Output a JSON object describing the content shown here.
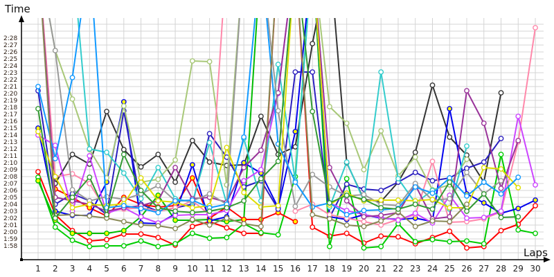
{
  "chart_data": {
    "type": "line",
    "title": "",
    "xlabel": "Laps",
    "ylabel": "Time",
    "x": [
      1,
      2,
      3,
      4,
      5,
      6,
      7,
      8,
      9,
      10,
      11,
      12,
      13,
      14,
      15,
      16,
      17,
      18,
      19,
      20,
      21,
      22,
      23,
      24,
      25,
      26,
      27,
      28,
      29,
      30
    ],
    "y_ticks": [
      "1:58",
      "1:59",
      "2:00",
      "2:01",
      "2:02",
      "2:03",
      "2:04",
      "2:05",
      "2:06",
      "2:07",
      "2:08",
      "2:09",
      "2:10",
      "2:11",
      "2:12",
      "2:13",
      "2:14",
      "2:15",
      "2:16",
      "2:17",
      "2:18",
      "2:19",
      "2:20",
      "2:21",
      "2:22",
      "2:23",
      "2:24",
      "2:25",
      "2:26",
      "2:27",
      "2:28"
    ],
    "ylim": [
      "1:56",
      "2:30"
    ],
    "grid": true,
    "off_scale_marker": ">2:30",
    "series": [
      {
        "color": "#ff0000",
        "marker_fill": "#ffffff",
        "values": [
          "2:08.7",
          "2:02.5",
          "2:00.2",
          "1:58.7",
          "1:58.9",
          "1:59.7",
          "1:59.7",
          "1:59.2",
          "1:58.1",
          "2:00.8",
          "2:01.5",
          "2:00.6",
          "1:59.8",
          "1:59.8",
          ">2:30",
          ">2:30",
          "2:00.7",
          "1:59.4",
          "1:59.8",
          "1:58.4",
          "1:59.4",
          "1:59.3",
          "1:58.3",
          "1:59.2",
          "2:00.1",
          "1:57.7",
          "1:57.9",
          "2:00.2",
          "2:01.1",
          "2:03.8"
        ]
      },
      {
        "color": "#00cc00",
        "marker_fill": "#ffffff",
        "values": [
          "2:07.9",
          "2:00.7",
          "1:58.8",
          "1:57.9",
          "1:58.0",
          "1:58.0",
          "1:58.7",
          "1:57.9",
          "1:58.3",
          "1:59.8",
          "1:59.1",
          "1:59.2",
          "2:01.2",
          "1:59.9",
          "1:59.6",
          "2:08.0",
          ">2:30",
          "1:57.9",
          "2:07.7",
          "1:57.7",
          "1:57.9",
          "2:01.2",
          "1:58.6",
          "1:58.9",
          "1:58.6",
          "1:58.7",
          "1:58.3",
          "2:11.2",
          "2:00.3",
          "1:59.8"
        ]
      },
      {
        "color": "#00bb00",
        "marker_fill": "#ffff00",
        "values": [
          "2:07.4",
          "2:01.7",
          "1:59.8",
          "1:59.8",
          "1:59.8",
          "2:00.2",
          "2:02.2",
          "2:05.3",
          "2:01.7",
          "2:01.7",
          "2:01.8",
          "2:01.5",
          "2:01.8",
          ">2:30",
          null,
          null,
          null,
          null,
          null,
          null,
          null,
          null,
          null,
          null,
          null,
          null,
          null,
          null,
          null,
          null
        ]
      },
      {
        "color": "#ff0000",
        "marker_fill": "#ffff00",
        "values": [
          ">2:30",
          "2:06.2",
          "2:05.0",
          "2:03.5",
          "2:02.3",
          "2:05.0",
          "2:04.0",
          "2:03.6",
          "2:03.8",
          "2:07.8",
          "2:02.0",
          "2:03.6",
          "2:01.8",
          "2:01.8",
          "2:02.8",
          "2:01.5",
          null,
          null,
          null,
          null,
          null,
          null,
          null,
          null,
          null,
          null,
          null,
          null,
          null,
          null
        ]
      },
      {
        "color": "#333333",
        "marker_fill": "#ffffff",
        "values": [
          ">2:30",
          "2:07.0",
          "2:11.2",
          "2:09.8",
          "2:17.4",
          "2:11.9",
          "2:09.4",
          "2:11.2",
          "2:07.2",
          "2:13.2",
          "2:10.1",
          "2:09.6",
          "2:09.7",
          "2:16.7",
          "2:11.2",
          "2:12.3",
          "2:27.2",
          ">2:30",
          "2:10.0",
          "2:04.7",
          "2:04.4",
          "2:07.2",
          "2:11.5",
          "2:21.2",
          "2:13.7",
          "2:11.1",
          "2:07.2",
          "2:20.1",
          null,
          null
        ]
      },
      {
        "color": "#0000ee",
        "marker_fill": "#ffff00",
        "values": [
          "2:15.0",
          "2:03.0",
          "2:02.4",
          "2:02.4",
          "2:07.2",
          "2:18.8",
          "2:01.3",
          "2:01.2",
          "2:02.6",
          "2:09.7",
          "2:01.6",
          "2:02.2",
          "2:10.0",
          "2:08.5",
          "2:03.5",
          "2:14.5",
          ">2:30",
          "2:02.2",
          "2:01.8",
          "2:02.5",
          "2:02.0",
          "2:01.8",
          "2:02.0",
          "2:01.5",
          "2:17.8",
          "2:05.5",
          "2:04.2",
          "2:02.7",
          "2:03.4",
          "2:04.6"
        ]
      },
      {
        "color": "#2b1fbf",
        "marker_fill": "#ffffff",
        "values": [
          "2:20.4",
          "2:04.0",
          "2:05.5",
          "2:04.5",
          "2:02.5",
          "2:17.5",
          "2:04.0",
          "2:03.0",
          "2:03.5",
          "2:04.0",
          "2:14.2",
          "2:10.8",
          "2:06.5",
          "2:07.4",
          "2:03.3",
          "2:23.1",
          "2:23.1",
          "2:02.1",
          "2:06.9",
          "2:06.2",
          "2:06.0",
          "2:07.2",
          "2:08.6",
          "2:07.4",
          "2:07.8",
          "2:09.2",
          "2:10.1",
          "2:13.5",
          null,
          null
        ]
      },
      {
        "color": "#a8c878",
        "marker_fill": "#ffffff",
        "values": [
          ">2:30",
          "2:26.2",
          "2:19.2",
          "2:11.9",
          "2:07.8",
          "2:18.2",
          "2:07.2",
          "2:07.6",
          "2:10.4",
          "2:24.7",
          "2:24.6",
          "2:06.8",
          ">2:30",
          ">2:30",
          ">2:30",
          ">2:30",
          ">2:30",
          "2:18.1",
          "2:15.7",
          "2:09.0",
          "2:14.6",
          "2:08.1",
          "2:10.8",
          "2:06.1",
          "2:06.8",
          "2:10.5",
          null,
          null,
          null,
          null
        ]
      },
      {
        "color": "#33cccc",
        "marker_fill": "#ffffff",
        "values": [
          ">2:30",
          ">2:30",
          ">2:30",
          "2:12.0",
          "2:11.5",
          "2:08.5",
          "2:04.8",
          "2:09.3",
          "2:04.8",
          "2:04.3",
          "2:12.9",
          "2:04.1",
          "2:13.5",
          "2:04.5",
          "2:24.2",
          "2:07.4",
          ">2:30",
          "2:03.6",
          "2:10.1",
          "2:04.5",
          "2:23.1",
          "2:07.7",
          "2:04.2",
          "2:06.0",
          "2:03.3",
          "2:12.4",
          null,
          null,
          null,
          null
        ]
      },
      {
        "color": "#ff88aa",
        "marker_fill": "#ffffff",
        "values": [
          ">2:30",
          "2:08.0",
          "2:08.4",
          "2:07.0",
          "2:03.0",
          "2:03.3",
          "2:03.5",
          "2:03.0",
          "2:03.5",
          "2:04.5",
          "2:02.5",
          ">2:30",
          ">2:30",
          null,
          null,
          "2:03.0",
          "2:04.0",
          "2:02.5",
          "2:02.0",
          "2:01.5",
          "2:01.0",
          "2:01.8",
          "2:02.5",
          "2:10.2",
          "2:01.4",
          "2:01.5",
          "2:01.9",
          "2:02.9",
          "2:13.0",
          "2:29.5"
        ]
      },
      {
        "color": "#cc44ff",
        "marker_fill": "#ffffff",
        "values": [
          "2:14.0",
          "2:12.5",
          "2:03.0",
          "2:11.0",
          "2:02.7",
          "2:03.5",
          "2:02.2",
          "2:01.3",
          "2:02.4",
          "2:02.5",
          "2:02.5",
          "2:03.1",
          "2:07.4",
          "2:09.0",
          "2:20.0",
          ">2:30",
          ">2:30",
          "2:04.2",
          "2:03.1",
          "2:02.5",
          "2:02.1",
          "2:01.7",
          "2:02.7",
          "2:01.3",
          "2:05.3",
          "2:02.0",
          "2:02.1",
          "2:03.0",
          "2:16.7",
          "2:06.8"
        ]
      },
      {
        "color": "#993399",
        "marker_fill": "#ffffff",
        "values": [
          ">2:30",
          "2:05.0",
          "2:04.5",
          "2:04.0",
          "2:03.0",
          "2:03.5",
          "2:03.8",
          "2:04.5",
          "2:09.3",
          "2:04.8",
          "2:05.0",
          "2:04.3",
          "2:09.3",
          "2:11.8",
          "2:20.1",
          ">2:30",
          ">2:30",
          "2:09.3",
          "2:04.5",
          "2:02.2",
          "2:02.4",
          "2:02.8",
          "2:06.8",
          "2:01.9",
          "2:02.2",
          "2:20.4",
          "2:15.7",
          "2:06.3",
          "2:13.2",
          null
        ]
      },
      {
        "color": "#999999",
        "marker_fill": "#ffffff",
        "values": [
          ">2:30",
          "2:26.2",
          "2:06.1",
          "2:04.5",
          "2:05.1",
          "2:04.7",
          "2:05.5",
          "2:06.7",
          "2:04.5",
          "2:04.5",
          "2:05.5",
          "2:04.0",
          ">2:30",
          ">2:30",
          "2:17.5",
          "2:03.7",
          "2:08.3",
          "2:06.5",
          "2:05.2",
          "2:05.4",
          "2:04.0",
          "2:03.8",
          "2:07.0",
          "2:04.6",
          "2:04.8",
          "2:08.6",
          "2:05.5",
          "2:07.4",
          null,
          null
        ]
      },
      {
        "color": "#dddd00",
        "marker_fill": "#ffffff",
        "values": [
          "2:14.5",
          "2:08.0",
          "2:03.5",
          "2:04.0",
          "2:03.8",
          "2:04.1",
          "2:07.8",
          "2:04.5",
          "2:04.3",
          "2:03.5",
          "2:03.8",
          "2:12.2",
          "2:05.7",
          "2:03.6",
          "2:03.8",
          ">2:30",
          ">2:30",
          "2:03.9",
          "2:05.6",
          "2:04.5",
          "2:04.6",
          "2:04.6",
          "2:04.5",
          "2:04.7",
          "2:03.5",
          "2:03.5",
          "2:09.3",
          "2:09.1",
          "2:06.4",
          null
        ]
      },
      {
        "color": "#1199ff",
        "marker_fill": "#ffffff",
        "values": [
          "2:21.0",
          "2:10.6",
          "2:22.3",
          ">2:30",
          "2:03.5",
          "2:03.8",
          "2:03.4",
          "2:02.8",
          "2:04.5",
          "2:04.6",
          "2:03.5",
          "2:04.0",
          "2:13.7",
          ">2:30",
          "2:12.7",
          "2:07.2",
          "2:03.6",
          "2:04.2",
          "2:02.5",
          "2:03.1",
          "2:03.2",
          "2:03.4",
          "2:06.5",
          "2:05.6",
          "2:07.8",
          "2:05.2",
          "2:07.2",
          "2:05.5",
          "2:07.9",
          null
        ]
      },
      {
        "color": "#888855",
        "marker_fill": "#ffffff",
        "values": [
          ">2:30",
          "2:02.4",
          "2:02.5",
          "2:02.3",
          "2:02.0",
          "2:01.5",
          "2:01.0",
          "2:00.9",
          "2:00.5",
          "2:01.8",
          "2:01.0",
          "2:02.0",
          "2:01.2",
          "2:00.8",
          ">2:30",
          ">2:30",
          "2:02.5",
          "2:01.9",
          "2:01.0",
          "2:00.8",
          "2:01.6",
          "2:02.9",
          "2:00.8",
          "2:01.6",
          "2:01.5",
          "2:04.0",
          null,
          null,
          null,
          null
        ]
      },
      {
        "color": "#339933",
        "marker_fill": "#ffffff",
        "values": [
          "2:17.8",
          "2:02.0",
          "2:05.0",
          "2:07.9",
          "2:02.5",
          "2:11.2",
          "2:06.0",
          "2:03.5",
          "2:03.0",
          "2:02.8",
          "2:03.0",
          "2:03.5",
          "2:04.5",
          "2:07.7",
          "2:10.2",
          ">2:30",
          "2:17.4",
          "2:04.2",
          "2:05.3",
          "2:04.7",
          "2:03.5",
          "2:03.3",
          "2:04.0",
          "2:03.3",
          "2:07.2",
          "2:03.0",
          "2:05.5",
          "2:02.1",
          "2:02.2",
          null
        ]
      }
    ]
  }
}
